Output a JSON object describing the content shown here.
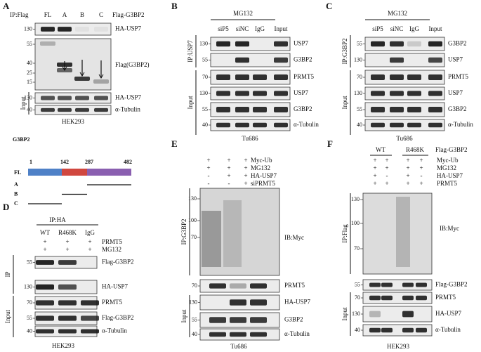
{
  "panel_a": {
    "label": "A",
    "ip": "IP:Flag",
    "lanes": [
      "FL",
      "A",
      "B",
      "C"
    ],
    "construct": "Flag-G3BP2",
    "ip_rows": [
      {
        "marker": "130",
        "name": "HA-USP7"
      }
    ],
    "flag_blot": {
      "markers": [
        "55",
        "40",
        "25",
        "15"
      ],
      "name": "Flag(G3BP2)"
    },
    "input_label": "Input",
    "input_rows": [
      {
        "marker": "130",
        "name": "HA-USP7"
      },
      {
        "marker": "40",
        "name": "α-Tubulin"
      }
    ],
    "cell_line": "HEK293"
  },
  "domain_map": {
    "title": "G3BP2",
    "full_length": "FL",
    "positions": [
      "1",
      "142",
      "287",
      "482"
    ],
    "fragments": [
      "A",
      "B",
      "C"
    ]
  },
  "panel_b": {
    "label": "B",
    "treatment": "MG132",
    "lanes": [
      "siP5",
      "siNC",
      "IgG",
      "Input"
    ],
    "ip": "IP:USP7",
    "ip_rows": [
      {
        "marker": "130",
        "name": "USP7"
      },
      {
        "marker": "55",
        "name": "G3BP2"
      }
    ],
    "input_label": "Input",
    "input_rows": [
      {
        "marker": "70",
        "name": "PRMT5"
      },
      {
        "marker": "130",
        "name": "USP7"
      },
      {
        "marker": "55",
        "name": "G3BP2"
      },
      {
        "marker": "40",
        "name": "α-Tubulin"
      }
    ],
    "cell_line": "Tu686"
  },
  "panel_c": {
    "label": "C",
    "treatment": "MG132",
    "lanes": [
      "siP5",
      "siNC",
      "IgG",
      "Input"
    ],
    "ip": "IP:G3BP2",
    "ip_rows": [
      {
        "marker": "55",
        "name": "G3BP2"
      },
      {
        "marker": "130",
        "name": "USP7"
      }
    ],
    "input_label": "Input",
    "input_rows": [
      {
        "marker": "70",
        "name": "PRMT5"
      },
      {
        "marker": "130",
        "name": "USP7"
      },
      {
        "marker": "55",
        "name": "G3BP2"
      },
      {
        "marker": "40",
        "name": "α-Tubulin"
      }
    ],
    "cell_line": "Tu686"
  },
  "panel_d": {
    "label": "D",
    "ip": "IP:HA",
    "lanes": [
      "WT",
      "R468K",
      "IgG"
    ],
    "conditions": [
      {
        "name": "PRMT5",
        "signs": [
          "+",
          "+",
          "+"
        ]
      },
      {
        "name": "MG132",
        "signs": [
          "+",
          "+",
          "+"
        ]
      }
    ],
    "ip_label": "IP",
    "ip_rows": [
      {
        "marker": "55",
        "name": "Flag-G3BP2"
      },
      {
        "marker": "130",
        "name": "HA-USP7"
      }
    ],
    "input_label": "Input",
    "input_rows": [
      {
        "marker": "70",
        "name": "PRMT5"
      },
      {
        "marker": "55",
        "name": "Flag-G3BP2"
      },
      {
        "marker": "40",
        "name": "α-Tubulin"
      }
    ],
    "cell_line": "HEK293"
  },
  "panel_e": {
    "label": "E",
    "conditions": [
      {
        "name": "Myc-Ub",
        "signs": [
          "+",
          "+",
          "+"
        ]
      },
      {
        "name": "MG132",
        "signs": [
          "+",
          "+",
          "+"
        ]
      },
      {
        "name": "HA-USP7",
        "signs": [
          "-",
          "+",
          "+"
        ]
      },
      {
        "name": "siPRMT5",
        "signs": [
          "-",
          "-",
          "+"
        ]
      }
    ],
    "ip": "IP:G3BP2",
    "ib": "IB:Myc",
    "ip_markers": [
      "130",
      "100",
      "70"
    ],
    "input_label": "Input",
    "input_rows": [
      {
        "marker": "70",
        "name": "PRMT5"
      },
      {
        "marker": "130",
        "name": "HA-USP7"
      },
      {
        "marker": "55",
        "name": "G3BP2"
      },
      {
        "marker": "40",
        "name": "α-Tubulin"
      }
    ],
    "cell_line": "Tu686"
  },
  "panel_f": {
    "label": "F",
    "groups": [
      "WT",
      "R468K"
    ],
    "construct": "Flag-G3BP2",
    "conditions": [
      {
        "name": "Myc-Ub",
        "signs": [
          "+",
          "+",
          "+",
          "+"
        ]
      },
      {
        "name": "MG132",
        "signs": [
          "+",
          "+",
          "+",
          "+"
        ]
      },
      {
        "name": "HA-USP7",
        "signs": [
          "+",
          "-",
          "+",
          "-"
        ]
      },
      {
        "name": "PRMT5",
        "signs": [
          "+",
          "+",
          "+",
          "+"
        ]
      }
    ],
    "ip": "IP:Flag",
    "ib": "IB:Myc",
    "ip_markers": [
      "130",
      "100",
      "70"
    ],
    "ip_rows": [
      {
        "marker": "55",
        "name": "Flag-G3BP2"
      }
    ],
    "input_label": "Input",
    "input_rows": [
      {
        "marker": "70",
        "name": "PRMT5"
      },
      {
        "marker": "130",
        "name": "HA-USP7"
      },
      {
        "marker": "40",
        "name": "α-Tubulin"
      }
    ],
    "cell_line": "HEK293"
  }
}
